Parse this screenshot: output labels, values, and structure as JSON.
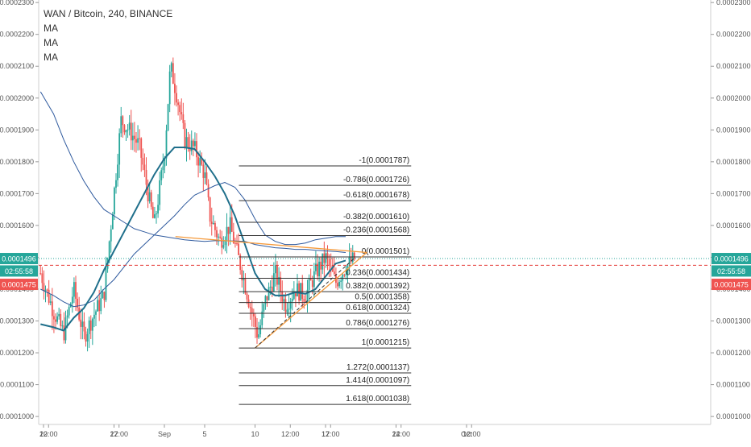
{
  "chart_data": {
    "type": "candlestick",
    "title": "WAN / Bitcoin, 240, BINANCE",
    "indicators": [
      "MA",
      "MA",
      "MA"
    ],
    "ylim": [
      9.75e-05,
      0.0002308
    ],
    "y_ticks": [
      "0.0001000",
      "0.0001100",
      "0.0001200",
      "0.0001300",
      "0.0001400",
      "0.0001500",
      "0.0001600",
      "0.0001700",
      "0.0001800",
      "0.0001900",
      "0.0002000",
      "0.0002100",
      "0.0002200",
      "0.0002300"
    ],
    "x_ticks": [
      {
        "label": "20",
        "t": 0
      },
      {
        "label": "12:00",
        "t": 0.5
      },
      {
        "label": "27",
        "t": 7
      },
      {
        "label": "12:00",
        "t": 7.5
      },
      {
        "label": "Sep",
        "t": 12
      },
      {
        "label": "5",
        "t": 16
      },
      {
        "label": "10",
        "t": 21
      },
      {
        "label": "12:00",
        "t": 24.5
      },
      {
        "label": "17",
        "t": 28
      },
      {
        "label": "12:00",
        "t": 28.5
      },
      {
        "label": "24",
        "t": 35
      },
      {
        "label": "12:00",
        "t": 35.5
      },
      {
        "label": "Oct",
        "t": 42
      },
      {
        "label": "12:00",
        "t": 42.5
      }
    ],
    "x_ticks_note": "t = days since Aug 20",
    "price_labels": [
      {
        "text": "0.0001496",
        "price": 0.0001496,
        "color": "#26a69a"
      },
      {
        "text": "02:55:58",
        "price": 0.0001457,
        "color": "#26a69a"
      },
      {
        "text": "0.0001475",
        "price": 0.0001415,
        "color": "#ef5350"
      }
    ],
    "current_price": 0.0001496,
    "red_dashed_level": 0.0001475,
    "fib_levels": [
      {
        "label": "-1(0.0001787)",
        "price": 0.0001787
      },
      {
        "label": "-0.786(0.0001726)",
        "price": 0.0001726
      },
      {
        "label": "-0.618(0.0001678)",
        "price": 0.0001678
      },
      {
        "label": "-0.382(0.0001610)",
        "price": 0.000161
      },
      {
        "label": "-0.236(0.0001568)",
        "price": 0.0001568
      },
      {
        "label": "0(0.0001501)",
        "price": 0.0001501
      },
      {
        "label": "0.236(0.0001434)",
        "price": 0.0001434
      },
      {
        "label": "0.382(0.0001392)",
        "price": 0.0001392
      },
      {
        "label": "0.5(0.0001358)",
        "price": 0.0001358
      },
      {
        "label": "0.618(0.0001324)",
        "price": 0.0001324
      },
      {
        "label": "0.786(0.0001276)",
        "price": 0.0001276
      },
      {
        "label": "1(0.0001215)",
        "price": 0.0001215
      },
      {
        "label": "1.272(0.0001137)",
        "price": 0.0001137
      },
      {
        "label": "1.414(0.0001097)",
        "price": 0.0001097
      },
      {
        "label": "1.618(0.0001038)",
        "price": 0.0001038
      }
    ],
    "fib_t_range": [
      19.4,
      36.5
    ],
    "triangle_upper": [
      {
        "t": 13.1,
        "price": 0.0001565
      },
      {
        "t": 32.1,
        "price": 0.0001515
      }
    ],
    "triangle_lower": [
      {
        "t": 21.0,
        "price": 0.0001215
      },
      {
        "t": 32.1,
        "price": 0.0001515
      }
    ],
    "dashed_trend": [
      {
        "t": 21.0,
        "price": 0.0001215
      },
      {
        "t": 30.9,
        "price": 0.0001498
      }
    ],
    "ma_fast": [
      [
        -0.3,
        0.000129
      ],
      [
        1,
        0.000128
      ],
      [
        2,
        0.000127
      ],
      [
        3,
        0.000131
      ],
      [
        4,
        0.000134
      ],
      [
        5,
        0.000139
      ],
      [
        6,
        0.000146
      ],
      [
        7,
        0.000152
      ],
      [
        8,
        0.000158
      ],
      [
        9,
        0.000164
      ],
      [
        10,
        0.00017
      ],
      [
        11,
        0.000176
      ],
      [
        12,
        0.000181
      ],
      [
        13,
        0.0001845
      ],
      [
        14,
        0.0001845
      ],
      [
        15,
        0.000184
      ],
      [
        16,
        0.00018
      ],
      [
        17,
        0.0001755
      ],
      [
        18,
        0.00017
      ],
      [
        19,
        0.000163
      ],
      [
        20,
        0.000154
      ],
      [
        21,
        0.000145
      ],
      [
        22,
        0.00014
      ],
      [
        23,
        0.000138
      ],
      [
        24,
        0.000138
      ],
      [
        25,
        0.000139
      ],
      [
        26,
        0.0001385
      ],
      [
        27,
        0.00014
      ],
      [
        28,
        0.000144
      ],
      [
        29,
        0.000148
      ],
      [
        30,
        0.000149
      ]
    ],
    "ma_mid": [
      [
        -0.3,
        0.00014
      ],
      [
        1,
        0.000138
      ],
      [
        2,
        0.000136
      ],
      [
        3,
        0.0001345
      ],
      [
        4,
        0.000135
      ],
      [
        5,
        0.0001365
      ],
      [
        6,
        0.00014
      ],
      [
        7,
        0.000143
      ],
      [
        8,
        0.000147
      ],
      [
        9,
        0.000151
      ],
      [
        10,
        0.000154
      ],
      [
        11,
        0.000157
      ],
      [
        12,
        0.00016
      ],
      [
        13,
        0.000163
      ],
      [
        14,
        0.0001665
      ],
      [
        15,
        0.0001695
      ],
      [
        16,
        0.000171
      ],
      [
        17,
        0.0001725
      ],
      [
        18,
        0.0001735
      ],
      [
        19,
        0.000172
      ],
      [
        20,
        0.000168
      ],
      [
        21,
        0.000162
      ],
      [
        22,
        0.000157
      ],
      [
        23,
        0.000155
      ],
      [
        24,
        0.000154
      ],
      [
        25,
        0.000154
      ],
      [
        26,
        0.0001545
      ],
      [
        27,
        0.0001555
      ],
      [
        28,
        0.000156
      ],
      [
        29,
        0.0001565
      ],
      [
        30,
        0.0001565
      ]
    ],
    "ma_slow": [
      [
        -0.3,
        0.000202
      ],
      [
        1,
        0.000195
      ],
      [
        2,
        0.000187
      ],
      [
        3,
        0.00018
      ],
      [
        4,
        0.000174
      ],
      [
        5,
        0.000169
      ],
      [
        6,
        0.000165
      ],
      [
        7,
        0.000163
      ],
      [
        8,
        0.000161
      ],
      [
        9,
        0.000159
      ],
      [
        10,
        0.000158
      ],
      [
        11,
        0.000157
      ],
      [
        12,
        0.0001565
      ],
      [
        13,
        0.000156
      ],
      [
        14,
        0.0001555
      ],
      [
        15,
        0.0001552
      ],
      [
        16,
        0.000155
      ],
      [
        17,
        0.0001552
      ],
      [
        18,
        0.0001552
      ],
      [
        19,
        0.0001551
      ],
      [
        20,
        0.000155
      ],
      [
        21,
        0.000154
      ],
      [
        22,
        0.0001535
      ],
      [
        23,
        0.000153
      ],
      [
        24,
        0.0001528
      ],
      [
        25,
        0.0001525
      ],
      [
        26,
        0.0001525
      ],
      [
        27,
        0.0001522
      ],
      [
        28,
        0.000152
      ],
      [
        29,
        0.0001518
      ],
      [
        30,
        0.0001515
      ]
    ],
    "price_path": [
      [
        -0.3,
        0.000145
      ],
      [
        1,
        0.000133
      ],
      [
        2,
        0.000126
      ],
      [
        3,
        0.00014
      ],
      [
        4,
        0.000125
      ],
      [
        5,
        0.000132
      ],
      [
        6,
        0.000138
      ],
      [
        7,
        0.00017
      ],
      [
        7.7,
        0.000193
      ],
      [
        8.5,
        0.00019
      ],
      [
        9.5,
        0.000185
      ],
      [
        10.5,
        0.000168
      ],
      [
        11,
        0.00016
      ],
      [
        12,
        0.000182
      ],
      [
        12.6,
        0.00021
      ],
      [
        13.3,
        0.0002
      ],
      [
        14,
        0.000187
      ],
      [
        15,
        0.000184
      ],
      [
        16,
        0.000176
      ],
      [
        16.5,
        0.000163
      ],
      [
        17.5,
        0.000155
      ],
      [
        18.5,
        0.00016
      ],
      [
        19.5,
        0.000148
      ],
      [
        20.5,
        0.000135
      ],
      [
        21.3,
        0.000125
      ],
      [
        22,
        0.000136
      ],
      [
        23,
        0.000145
      ],
      [
        24,
        0.000135
      ],
      [
        25,
        0.00014
      ],
      [
        26,
        0.000138
      ],
      [
        27,
        0.000145
      ],
      [
        28,
        0.00015
      ],
      [
        29,
        0.000142
      ],
      [
        30,
        0.000147
      ],
      [
        30.9,
        0.0001496
      ]
    ]
  }
}
